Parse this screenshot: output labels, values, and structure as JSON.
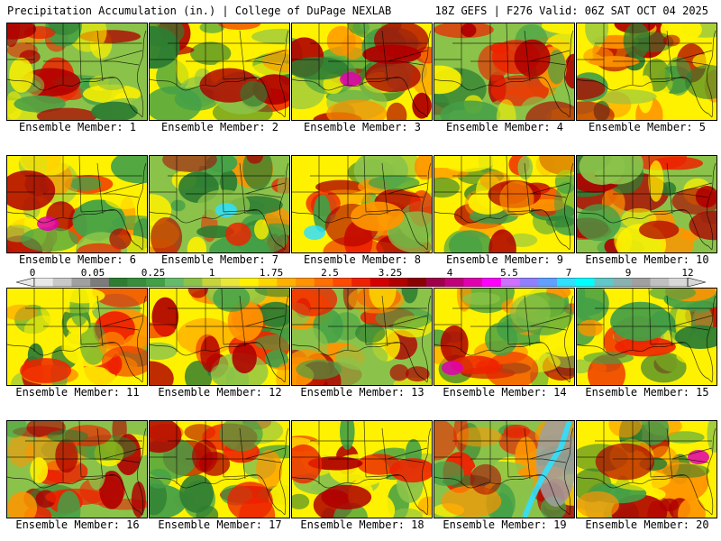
{
  "header": {
    "left": "Precipitation Accumulation (in.) | College of DuPage NEXLAB",
    "right": "18Z GEFS | F276 Valid: 06Z SAT OCT 04 2025"
  },
  "members": [
    "Ensemble Member: 1",
    "Ensemble Member: 2",
    "Ensemble Member: 3",
    "Ensemble Member: 4",
    "Ensemble Member: 5",
    "Ensemble Member: 6",
    "Ensemble Member: 7",
    "Ensemble Member: 8",
    "Ensemble Member: 9",
    "Ensemble Member: 10",
    "Ensemble Member: 11",
    "Ensemble Member: 12",
    "Ensemble Member: 13",
    "Ensemble Member: 14",
    "Ensemble Member: 15",
    "Ensemble Member: 16",
    "Ensemble Member: 17",
    "Ensemble Member: 18",
    "Ensemble Member: 19",
    "Ensemble Member: 20"
  ],
  "colorbar": {
    "tick_labels": [
      "0",
      "0.05",
      "0.25",
      "1",
      "1.75",
      "2.5",
      "3.25",
      "4",
      "5.5",
      "7",
      "9",
      "12"
    ],
    "colors": [
      "#e8e8e8",
      "#c8c8c8",
      "#a0a0a0",
      "#7c7c7c",
      "#2e7d32",
      "#388e3c",
      "#43a047",
      "#66bb6a",
      "#8bc34a",
      "#c6d53a",
      "#e8e83a",
      "#fff200",
      "#ffd700",
      "#ffb000",
      "#ff9400",
      "#ff7000",
      "#ff4a00",
      "#ee2200",
      "#d40000",
      "#b00000",
      "#8b0000",
      "#a0004a",
      "#c0007a",
      "#e000b0",
      "#ff00ff",
      "#d070ff",
      "#9080ff",
      "#60a0ff",
      "#30e0ff",
      "#00ffff",
      "#60c8c8",
      "#8ab0b0",
      "#a0a0a0",
      "#c0c0c0",
      "#d8d8d8"
    ]
  },
  "map_palette": {
    "dark_green": "#2e7d32",
    "green": "#43a047",
    "light_green": "#8bc34a",
    "yellow": "#fff200",
    "orange": "#ff9400",
    "red": "#ee2200",
    "dark_red": "#b00000",
    "magenta": "#e000b0",
    "cyan": "#30e0ff",
    "gray": "#a0a0a0"
  }
}
